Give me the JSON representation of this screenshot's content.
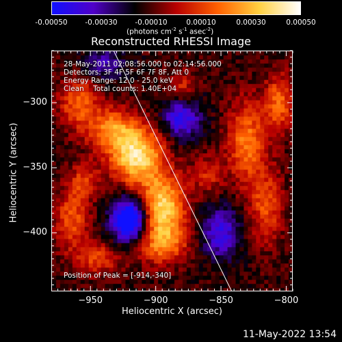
{
  "colorbar": {
    "ticks": [
      "-0.00050",
      "-0.00030",
      "-0.00010",
      "0.00010",
      "0.00030",
      "0.00050"
    ],
    "units_main": "(photons cm",
    "units_sup1": "-2",
    "units_mid": " s",
    "units_sup2": "-1",
    "units_mid2": " asec",
    "units_sup3": "-2",
    "units_end": ")",
    "colors": [
      "#1010ff",
      "#5000c8",
      "#000000",
      "#b80000",
      "#ff6000",
      "#ffd040",
      "#ffffff"
    ]
  },
  "chart_data": {
    "type": "heatmap",
    "title": "Reconstructed RHESSI Image",
    "xlabel": "Heliocentric X (arcsec)",
    "ylabel": "Heliocentric Y (arcsec)",
    "xlim": [
      -980,
      -795
    ],
    "ylim": [
      -445,
      -260
    ],
    "xticks": [
      -950,
      -900,
      -850,
      -800
    ],
    "yticks": [
      -300,
      -350,
      -400
    ],
    "xtick_labels": [
      "−950",
      "−900",
      "−850",
      "−800"
    ],
    "ytick_labels": [
      "−300",
      "−350",
      "−400"
    ],
    "value_range": [
      -0.0005,
      0.0005
    ],
    "peak": [
      -914,
      -340
    ],
    "limb_line": {
      "x": [
        -935,
        -842
      ],
      "y": [
        -255,
        -445
      ]
    },
    "blobs": [
      {
        "x": -915,
        "y": -340,
        "amp": 0.00052,
        "sx": 14,
        "sy": 16
      },
      {
        "x": -895,
        "y": -382,
        "amp": 0.0005,
        "sx": 12,
        "sy": 18
      },
      {
        "x": -935,
        "y": -320,
        "amp": 0.0003,
        "sx": 12,
        "sy": 12
      },
      {
        "x": -960,
        "y": -300,
        "amp": 0.00028,
        "sx": 10,
        "sy": 14
      },
      {
        "x": -965,
        "y": -390,
        "amp": 0.00026,
        "sx": 9,
        "sy": 16
      },
      {
        "x": -955,
        "y": -360,
        "amp": 0.0002,
        "sx": 8,
        "sy": 10
      },
      {
        "x": -945,
        "y": -420,
        "amp": 0.00022,
        "sx": 12,
        "sy": 9
      },
      {
        "x": -830,
        "y": -330,
        "amp": 0.00032,
        "sx": 10,
        "sy": 22
      },
      {
        "x": -805,
        "y": -300,
        "amp": 0.00028,
        "sx": 8,
        "sy": 16
      },
      {
        "x": -815,
        "y": -380,
        "amp": 0.00024,
        "sx": 9,
        "sy": 20
      },
      {
        "x": -860,
        "y": -355,
        "amp": 0.00018,
        "sx": 9,
        "sy": 10
      },
      {
        "x": -880,
        "y": -290,
        "amp": 0.00022,
        "sx": 8,
        "sy": 10
      },
      {
        "x": -895,
        "y": -410,
        "amp": 0.00025,
        "sx": 14,
        "sy": 10
      },
      {
        "x": -920,
        "y": -390,
        "amp": -0.00055,
        "sx": 10,
        "sy": 12
      },
      {
        "x": -880,
        "y": -310,
        "amp": -0.00035,
        "sx": 10,
        "sy": 12
      },
      {
        "x": -850,
        "y": -400,
        "amp": -0.0003,
        "sx": 10,
        "sy": 14
      },
      {
        "x": -940,
        "y": -270,
        "amp": -0.0002,
        "sx": 12,
        "sy": 8
      }
    ],
    "baseline": -0.00012
  },
  "info": {
    "time": "28-May-2011 02:08:56.000 to 02:14:56.000",
    "detectors": "Detectors: 3F 4F 5F 6F 7F 8F, Att 0",
    "energy": "Energy Range: 12.0 - 25.0 keV",
    "clean": "Clean    Total counts: 1.40E+04",
    "peak": "Position of Peak = [-914,-340]"
  },
  "footer": "11-May-2022 13:54"
}
